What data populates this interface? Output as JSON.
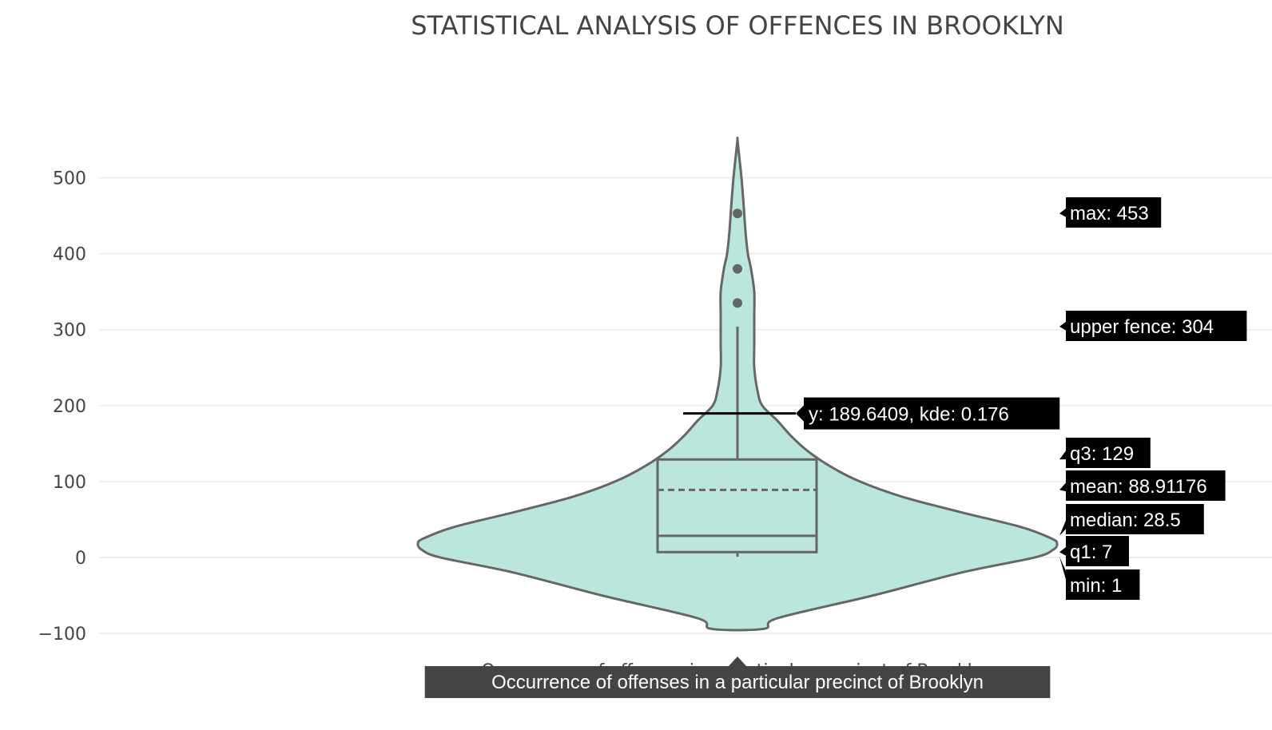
{
  "chart_data": {
    "type": "violin",
    "title": "STATISTICAL ANALYSIS OF OFFENCES IN BROOKLYN",
    "categories": [
      "Occurrence of offenses in a particular precinct of Brooklyn"
    ],
    "ylim": [
      -100,
      550
    ],
    "yticks": [
      -100,
      0,
      100,
      200,
      300,
      400,
      500
    ],
    "grid": true,
    "legend": "none",
    "box": {
      "min": 1,
      "q1": 7,
      "median": 28.5,
      "mean": 88.91176,
      "q3": 129,
      "upper_fence": 304,
      "max": 453
    },
    "outliers": [
      335,
      380,
      453
    ],
    "violin_outline": {
      "y": [
        -94,
        -80,
        -50,
        -20,
        0,
        10,
        18,
        25,
        40,
        60,
        80,
        100,
        120,
        140,
        160,
        180,
        200,
        220,
        250,
        280,
        300,
        320,
        350,
        380,
        400,
        430,
        460,
        500,
        530,
        550
      ],
      "half_width": [
        0.033,
        0.05,
        0.17,
        0.28,
        0.372,
        0.395,
        0.4,
        0.393,
        0.355,
        0.278,
        0.206,
        0.153,
        0.116,
        0.088,
        0.067,
        0.05,
        0.031,
        0.025,
        0.021,
        0.021,
        0.021,
        0.021,
        0.021,
        0.017,
        0.013,
        0.01,
        0.008,
        0.005,
        0.002,
        0.0
      ]
    },
    "hover": {
      "line_label": "y: 189.6409, kde: 0.176",
      "labels": [
        "max: 453",
        "upper fence: 304",
        "q3: 129",
        "mean: 88.91176",
        "median: 28.5",
        "q1: 7",
        "min: 1"
      ],
      "category_label": "Occurrence of offenses in a particular precinct of Brooklyn"
    },
    "colors": {
      "fill": "#b2e2d9",
      "line": "#666666",
      "grid": "#eeeeee",
      "tooltip": "#000000",
      "category_tooltip": "#444444"
    }
  }
}
